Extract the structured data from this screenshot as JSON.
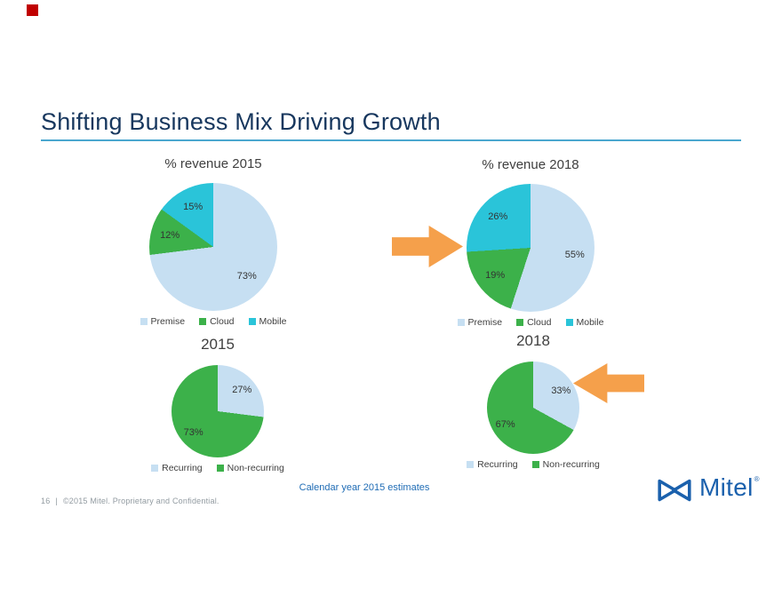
{
  "slide": {
    "title": "Shifting Business Mix Driving Growth",
    "note": "Calendar year 2015 estimates",
    "footer": {
      "page_number": "16",
      "separator": "|",
      "copyright": "©2015 Mitel. Proprietary and Confidential."
    },
    "logo": {
      "text": "Mitel",
      "registered": "®"
    }
  },
  "colors": {
    "title_navy": "#17375e",
    "title_rule_blue": "#4aa7cf",
    "premise_light_blue": "#c6dff2",
    "cloud_green": "#3cb14a",
    "mobile_cyan": "#2ac4d9",
    "arrow_orange": "#f5a04b",
    "note_blue": "#1f6cb5",
    "logo_blue": "#1b61ad",
    "corner_marker_red": "#c00000"
  },
  "chart_data": [
    {
      "type": "pie",
      "title": "% revenue 2015",
      "labels": [
        "Premise",
        "Cloud",
        "Mobile"
      ],
      "values": [
        73,
        12,
        15
      ],
      "unit": "%",
      "colors": [
        "#c6dff2",
        "#3cb14a",
        "#2ac4d9"
      ],
      "start_angle_deg": 0,
      "direction": "clockwise",
      "legend_position": "bottom"
    },
    {
      "type": "pie",
      "title": "% revenue 2018",
      "labels": [
        "Premise",
        "Cloud",
        "Mobile"
      ],
      "values": [
        55,
        19,
        26
      ],
      "unit": "%",
      "colors": [
        "#c6dff2",
        "#3cb14a",
        "#2ac4d9"
      ],
      "start_angle_deg": 0,
      "direction": "clockwise",
      "legend_position": "bottom"
    },
    {
      "type": "pie",
      "title": "2015",
      "labels": [
        "Recurring",
        "Non-recurring"
      ],
      "values": [
        27,
        73
      ],
      "unit": "%",
      "colors": [
        "#c6dff2",
        "#3cb14a"
      ],
      "start_angle_deg": 0,
      "direction": "clockwise",
      "legend_position": "bottom"
    },
    {
      "type": "pie",
      "title": "2018",
      "labels": [
        "Recurring",
        "Non-recurring"
      ],
      "values": [
        33,
        67
      ],
      "unit": "%",
      "colors": [
        "#c6dff2",
        "#3cb14a"
      ],
      "start_angle_deg": 0,
      "direction": "clockwise",
      "legend_position": "bottom"
    }
  ]
}
